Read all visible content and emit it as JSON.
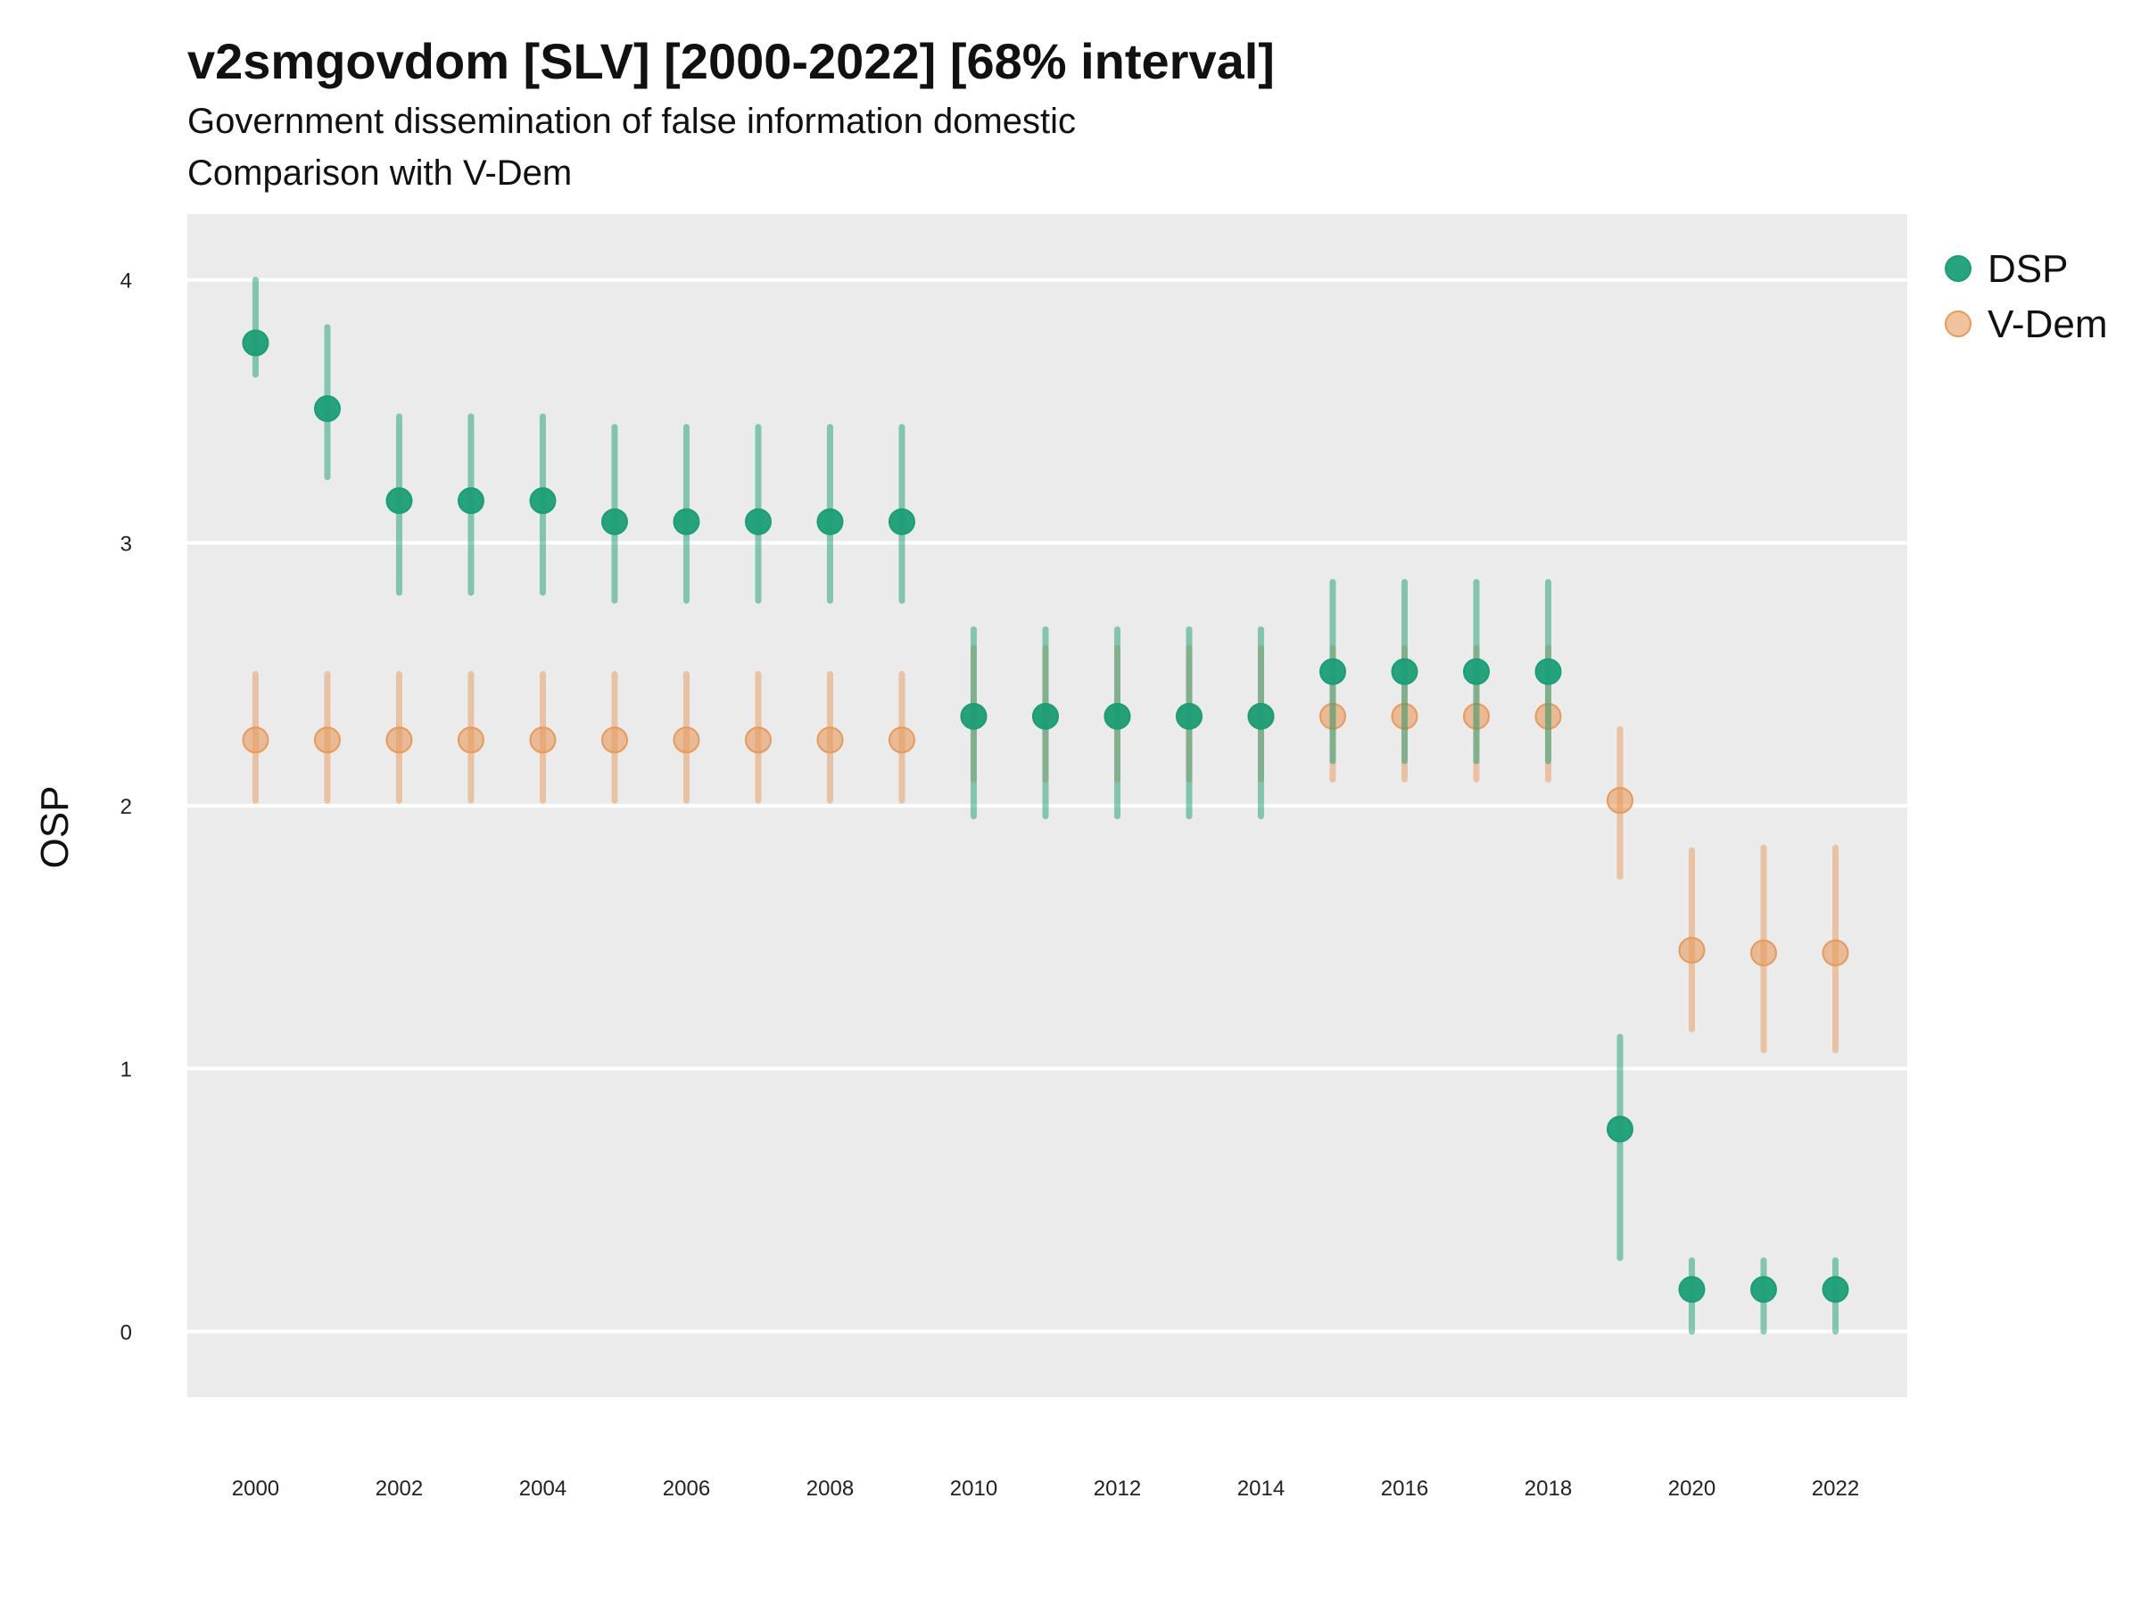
{
  "chart_data": {
    "type": "scatter",
    "title": "v2smgovdom [SLV] [2000-2022] [68% interval]",
    "subtitle": "Government dissemination of false information domestic",
    "subtitle2": "Comparison with V-Dem",
    "xlabel": "",
    "ylabel": "OSP",
    "x_ticks": [
      "2000",
      "2002",
      "2004",
      "2006",
      "2008",
      "2010",
      "2012",
      "2014",
      "2016",
      "2018",
      "2020",
      "2022"
    ],
    "y_ticks": [
      "0",
      "1",
      "2",
      "3",
      "4"
    ],
    "xlim": [
      1999.05,
      2023.0
    ],
    "ylim": [
      -0.25,
      4.25
    ],
    "grid": true,
    "legend_position": "right",
    "x": [
      2000,
      2001,
      2002,
      2003,
      2004,
      2005,
      2006,
      2007,
      2008,
      2009,
      2010,
      2011,
      2012,
      2013,
      2014,
      2015,
      2016,
      2017,
      2018,
      2019,
      2020,
      2021,
      2022
    ],
    "series": [
      {
        "name": "V-Dem",
        "color": "#E69A5C",
        "values": [
          2.25,
          2.25,
          2.25,
          2.25,
          2.25,
          2.25,
          2.25,
          2.25,
          2.25,
          2.25,
          2.34,
          2.34,
          2.34,
          2.34,
          2.34,
          2.34,
          2.34,
          2.34,
          2.34,
          2.02,
          1.45,
          1.44,
          1.44
        ],
        "lower": [
          2.02,
          2.02,
          2.02,
          2.02,
          2.02,
          2.02,
          2.02,
          2.02,
          2.02,
          2.02,
          2.1,
          2.1,
          2.1,
          2.1,
          2.1,
          2.1,
          2.1,
          2.1,
          2.1,
          1.73,
          1.15,
          1.07,
          1.07
        ],
        "upper": [
          2.5,
          2.5,
          2.5,
          2.5,
          2.5,
          2.5,
          2.5,
          2.5,
          2.5,
          2.5,
          2.6,
          2.6,
          2.6,
          2.6,
          2.6,
          2.6,
          2.6,
          2.6,
          2.6,
          2.29,
          1.83,
          1.84,
          1.84
        ]
      },
      {
        "name": "DSP",
        "color": "#1B9E77",
        "values": [
          3.76,
          3.51,
          3.16,
          3.16,
          3.16,
          3.08,
          3.08,
          3.08,
          3.08,
          3.08,
          2.34,
          2.34,
          2.34,
          2.34,
          2.34,
          2.51,
          2.51,
          2.51,
          2.51,
          0.77,
          0.16,
          0.16,
          0.16
        ],
        "lower": [
          3.64,
          3.25,
          2.81,
          2.81,
          2.81,
          2.78,
          2.78,
          2.78,
          2.78,
          2.78,
          1.96,
          1.96,
          1.96,
          1.96,
          1.96,
          2.17,
          2.17,
          2.17,
          2.17,
          0.28,
          0.0,
          0.0,
          0.0
        ],
        "upper": [
          4.0,
          3.82,
          3.48,
          3.48,
          3.48,
          3.44,
          3.44,
          3.44,
          3.44,
          3.44,
          2.67,
          2.67,
          2.67,
          2.67,
          2.67,
          2.85,
          2.85,
          2.85,
          2.85,
          1.12,
          0.27,
          0.27,
          0.27
        ]
      }
    ],
    "legend": [
      {
        "name": "DSP",
        "color": "#1B9E77"
      },
      {
        "name": "V-Dem",
        "color": "#E69A5C"
      }
    ]
  }
}
